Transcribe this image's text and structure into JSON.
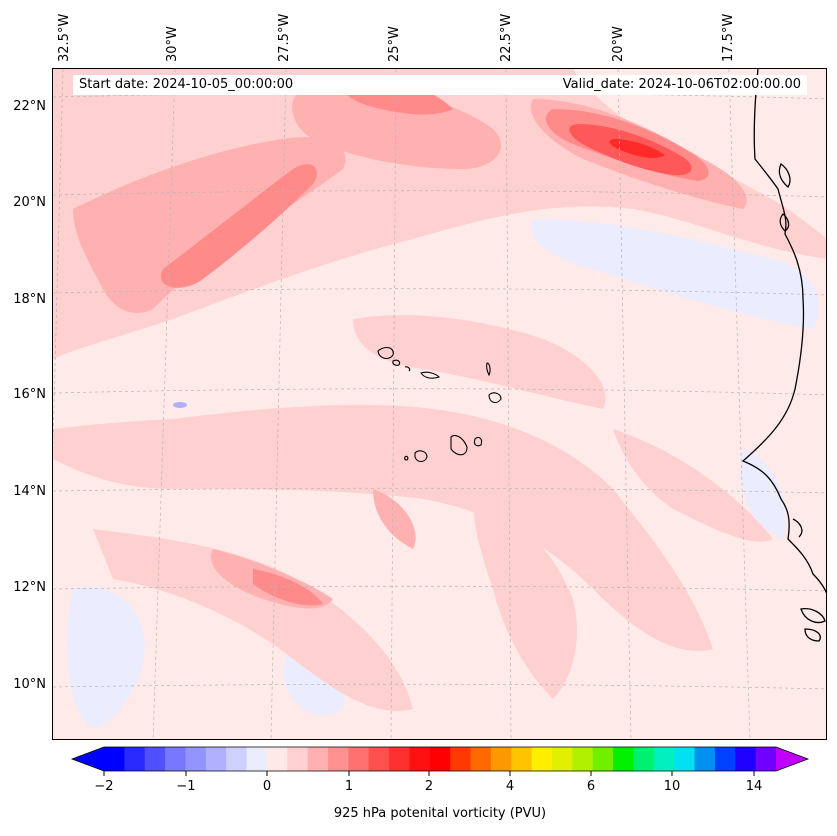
{
  "map": {
    "start_label": "Start date: 2024-10-05_00:00:00",
    "valid_label": "Valid_date: 2024-10-06T02:00:00.00",
    "lon_labels": [
      "32.5°W",
      "30°W",
      "27.5°W",
      "25°W",
      "22.5°W",
      "20°W",
      "17.5°W"
    ],
    "lat_labels": [
      "22°N",
      "20°N",
      "18°N",
      "16°N",
      "14°N",
      "12°N",
      "10°N"
    ],
    "land_color": "#000000"
  },
  "colorbar": {
    "title": "925 hPa potenital vorticity (PVU)",
    "tick_labels": [
      "−2",
      "−1",
      "0",
      "1",
      "2",
      "4",
      "6",
      "10",
      "14"
    ],
    "colors": [
      "#0000ff",
      "#2a2aff",
      "#5050ff",
      "#7878ff",
      "#9494ff",
      "#b0b0ff",
      "#d0d0ff",
      "#ececff",
      "#ffe8e8",
      "#ffd0d0",
      "#ffb0b0",
      "#ff9090",
      "#ff7070",
      "#ff5050",
      "#ff3030",
      "#ff1010",
      "#ff0000",
      "#ff3a00",
      "#ff6a00",
      "#ff9800",
      "#ffc400",
      "#ffee00",
      "#e0f000",
      "#b0f000",
      "#70f000",
      "#00f000",
      "#00f070",
      "#00f0c0",
      "#00e0f0",
      "#0090f0",
      "#0040ff",
      "#2000ff",
      "#7000ff"
    ],
    "over_color": "#c000ff",
    "under_color": "#0000ff"
  }
}
